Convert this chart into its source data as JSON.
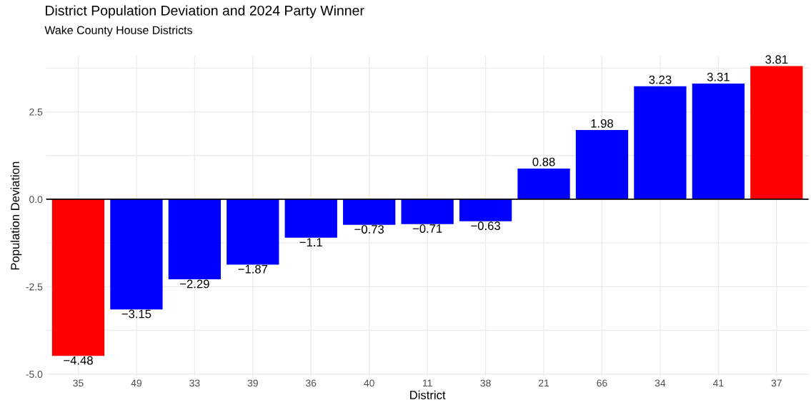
{
  "chart_data": {
    "type": "bar",
    "title": "District Population Deviation and 2024 Party Winner",
    "subtitle": "Wake County House Districts",
    "xlabel": "District",
    "ylabel": "Population Deviation",
    "categories": [
      "35",
      "49",
      "33",
      "39",
      "36",
      "40",
      "11",
      "38",
      "21",
      "66",
      "34",
      "41",
      "37"
    ],
    "values": [
      -4.48,
      -3.15,
      -2.29,
      -1.87,
      -1.1,
      -0.73,
      -0.71,
      -0.63,
      0.88,
      1.98,
      3.23,
      3.31,
      3.81
    ],
    "colors": [
      "#ff0000",
      "#0000ff",
      "#0000ff",
      "#0000ff",
      "#0000ff",
      "#0000ff",
      "#0000ff",
      "#0000ff",
      "#0000ff",
      "#0000ff",
      "#0000ff",
      "#0000ff",
      "#ff0000"
    ],
    "value_labels": [
      "−4.48",
      "−3.15",
      "−2.29",
      "−1.87",
      "−1.1",
      "−0.73",
      "−0.71",
      "−0.63",
      "0.88",
      "1.98",
      "3.23",
      "3.31",
      "3.81"
    ],
    "ylim": [
      -5.05,
      4.1
    ],
    "yticks": [
      {
        "value": -5.0,
        "label": "-5.0"
      },
      {
        "value": -3.75,
        "label": null
      },
      {
        "value": -2.5,
        "label": "-2.5"
      },
      {
        "value": -1.25,
        "label": null
      },
      {
        "value": 0,
        "label": "0.0"
      },
      {
        "value": 1.25,
        "label": null
      },
      {
        "value": 2.5,
        "label": "2.5"
      },
      {
        "value": 3.75,
        "label": null
      }
    ],
    "ref_lines": [
      {
        "axis": "y",
        "value": 0,
        "label": null,
        "color": "#000000"
      }
    ],
    "grid": true,
    "legend": false
  }
}
